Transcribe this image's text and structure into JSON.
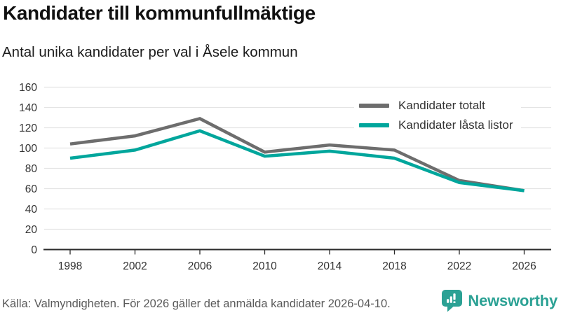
{
  "header": {
    "title": "Kandidater till kommunfullmäktige",
    "subtitle": "Antal unika kandidater per val i Åsele kommun"
  },
  "chart_data": {
    "type": "line",
    "categories": [
      "1998",
      "2002",
      "2006",
      "2010",
      "2014",
      "2018",
      "2022",
      "2026"
    ],
    "series": [
      {
        "name": "Kandidater totalt",
        "color": "#6d6d6d",
        "values": [
          104,
          112,
          129,
          96,
          103,
          98,
          68,
          58
        ]
      },
      {
        "name": "Kandidater låsta listor",
        "color": "#00a69c",
        "values": [
          90,
          98,
          117,
          92,
          97,
          90,
          66,
          58
        ]
      }
    ],
    "title": "Kandidater till kommunfullmäktige",
    "subtitle": "Antal unika kandidater per val i Åsele kommun",
    "xlabel": "",
    "ylabel": "",
    "ylim": [
      0,
      160
    ],
    "ytick_step": 20,
    "grid": true,
    "legend_position": "top-right"
  },
  "colors": {
    "grid": "#e4e4e4",
    "axis": "#2b2b2b",
    "tick_label": "#333333",
    "legend_label": "#333333",
    "title_text": "#111111",
    "source_text": "#5a5a5a",
    "brand": "#2ba194",
    "background": "#ffffff"
  },
  "footer": {
    "source": "Källa: Valmyndigheten. För 2026 gäller det anmälda kandidater 2026-04-10.",
    "brand": {
      "name": "Newsworthy",
      "icon": "bar-chart-speech-bubble-icon",
      "color": "#2ba194"
    }
  }
}
